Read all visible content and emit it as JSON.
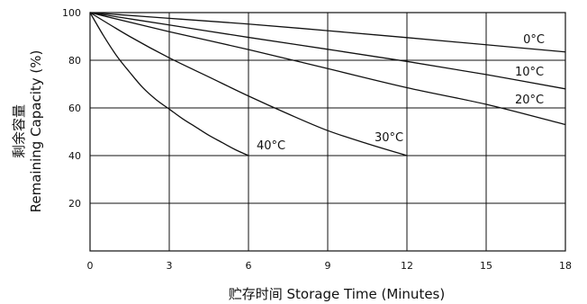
{
  "chart_data": {
    "type": "line",
    "title": "",
    "xlabel": "贮存时间 Storage Time (Minutes)",
    "ylabel_line1": "剩余容量",
    "ylabel_line2": "Remaining Capacity (%)",
    "xlim": [
      0,
      18
    ],
    "ylim": [
      0,
      100
    ],
    "xticks": [
      0,
      3,
      6,
      9,
      12,
      15,
      18
    ],
    "yticks": [
      20,
      40,
      60,
      80,
      100
    ],
    "grid": true,
    "colors": {
      "lines": "#111111",
      "grid": "#111111",
      "background": "#ffffff"
    },
    "series": [
      {
        "name": "0°C",
        "x": [
          0,
          3,
          6,
          9,
          12,
          15,
          18
        ],
        "y": [
          100,
          97.6,
          95.2,
          92.4,
          89.5,
          86.5,
          83.5
        ]
      },
      {
        "name": "10°C",
        "x": [
          0,
          3,
          6,
          9,
          12,
          15,
          18
        ],
        "y": [
          100,
          94.8,
          89.6,
          84.6,
          79.5,
          74.0,
          68.0
        ]
      },
      {
        "name": "20°C",
        "x": [
          0,
          3,
          6,
          9,
          12,
          15,
          18
        ],
        "y": [
          100,
          92.0,
          84.5,
          76.5,
          68.5,
          61.5,
          53.0
        ]
      },
      {
        "name": "30°C",
        "x": [
          0,
          1.5,
          3,
          4.5,
          6,
          7.5,
          9,
          10.5,
          12
        ],
        "y": [
          100,
          90.0,
          81.0,
          73.0,
          65.0,
          57.5,
          50.5,
          45.0,
          40.0
        ]
      },
      {
        "name": "40°C",
        "x": [
          0,
          0.5,
          1,
          1.5,
          2,
          2.5,
          3,
          3.5,
          4,
          4.5,
          5,
          5.5,
          6
        ],
        "y": [
          100,
          90.5,
          82.0,
          75.0,
          68.5,
          63.5,
          59.5,
          55.5,
          52.0,
          48.5,
          45.5,
          42.5,
          40.0
        ]
      }
    ]
  }
}
